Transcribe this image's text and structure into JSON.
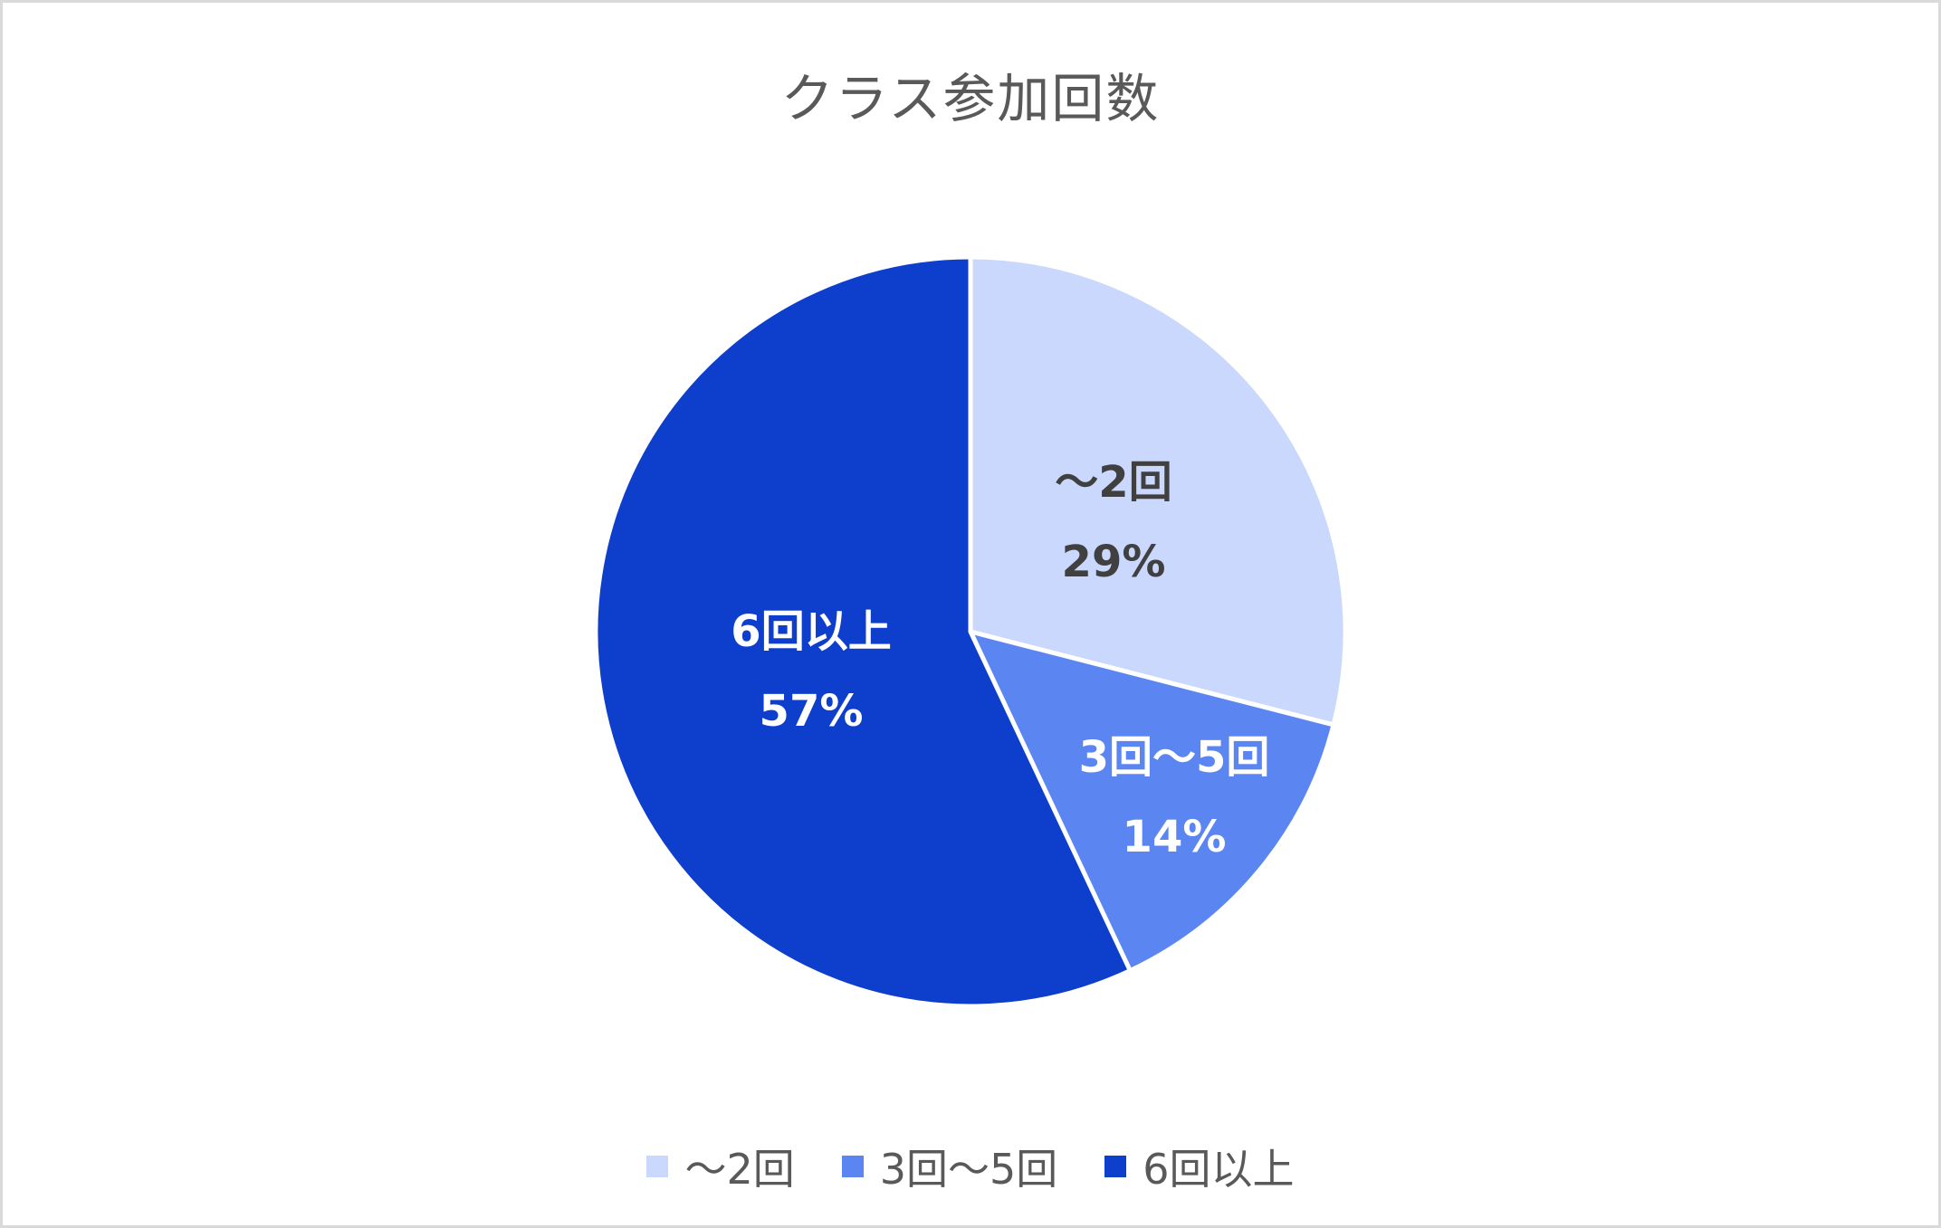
{
  "chart_data": {
    "type": "pie",
    "title": "クラス参加回数",
    "categories": [
      "〜2回",
      "3回〜5回",
      "6回以上"
    ],
    "values": [
      29,
      14,
      57
    ],
    "unit": "%",
    "colors": [
      "#c9d8fc",
      "#5b86f2",
      "#0e3ecc"
    ],
    "data_labels": [
      {
        "category": "〜2回",
        "percent": "29%"
      },
      {
        "category": "3回〜5回",
        "percent": "14%"
      },
      {
        "category": "6回以上",
        "percent": "57%"
      }
    ],
    "start_angle": "12 o'clock, clockwise",
    "legend_position": "bottom"
  },
  "title": "クラス参加回数",
  "labels": {
    "s0": {
      "name": "〜2回",
      "pct": "29%"
    },
    "s1": {
      "name": "3回〜5回",
      "pct": "14%"
    },
    "s2": {
      "name": "6回以上",
      "pct": "57%"
    }
  },
  "legend": [
    "〜2回",
    "3回〜5回",
    "6回以上"
  ]
}
